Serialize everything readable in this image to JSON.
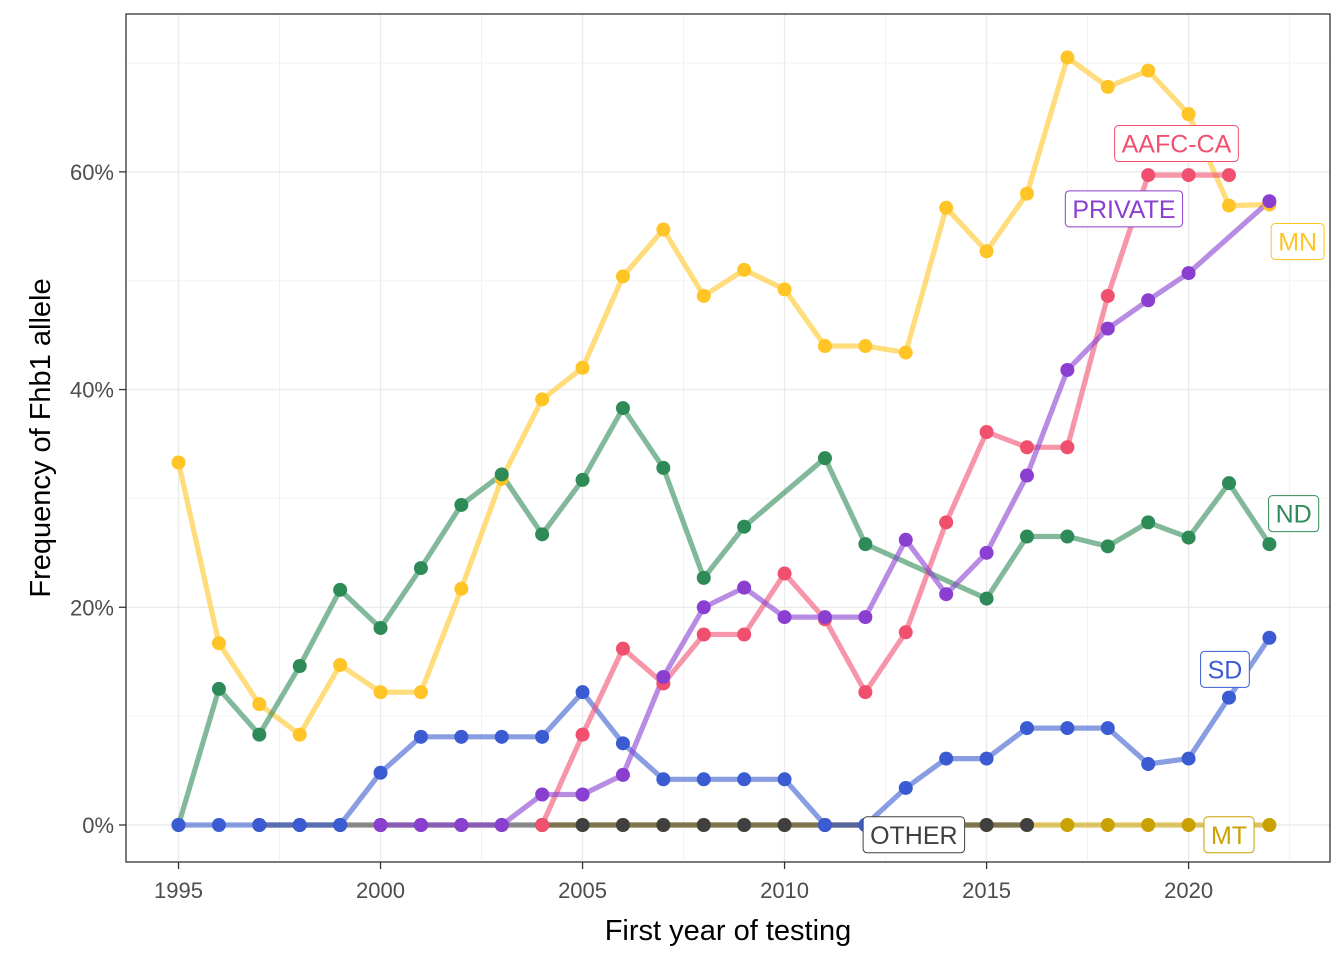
{
  "chart_data": {
    "type": "line",
    "xlabel": "First year of testing",
    "ylabel": "Frequency of Fhb1 allele",
    "xlim": [
      1993.7,
      2023.5
    ],
    "ylim": [
      -3.4,
      74.5
    ],
    "x_ticks": [
      1995,
      2000,
      2005,
      2010,
      2015,
      2020
    ],
    "x_tick_labels": [
      "1995",
      "2000",
      "2005",
      "2010",
      "2015",
      "2020"
    ],
    "y_ticks": [
      0,
      20,
      40,
      60
    ],
    "y_tick_labels": [
      "0%",
      "20%",
      "40%",
      "60%"
    ],
    "grid": true,
    "legend": "none (direct labels)",
    "series": [
      {
        "name": "MT",
        "color": "#C9A100",
        "x": [
          2004,
          2005,
          2006,
          2007,
          2008,
          2009,
          2010,
          2011,
          2012,
          2013,
          2014,
          2015,
          2016,
          2017,
          2018,
          2019,
          2020,
          2021,
          2022
        ],
        "values": [
          0,
          0,
          0,
          0,
          0,
          0,
          0,
          0,
          0,
          0,
          0,
          0,
          0,
          0,
          0,
          0,
          0,
          0,
          0
        ]
      },
      {
        "name": "OTHER",
        "color": "#404040",
        "x": [
          1997,
          1998,
          1999,
          2000,
          2001,
          2002,
          2003,
          2004,
          2005,
          2006,
          2007,
          2008,
          2009,
          2010,
          2011,
          2012,
          2013,
          2014,
          2015,
          2016
        ],
        "values": [
          0,
          0,
          0,
          0,
          0,
          0,
          0,
          0,
          0,
          0,
          0,
          0,
          0,
          0,
          0,
          0,
          0,
          0,
          0,
          0
        ]
      },
      {
        "name": "MN",
        "color": "#FFC425",
        "x": [
          1995,
          1996,
          1997,
          1998,
          1999,
          2000,
          2001,
          2002,
          2003,
          2004,
          2005,
          2006,
          2007,
          2008,
          2009,
          2010,
          2011,
          2012,
          2013,
          2014,
          2015,
          2016,
          2017,
          2018,
          2019,
          2020,
          2021,
          2022
        ],
        "values": [
          33.3,
          16.7,
          11.1,
          8.3,
          14.7,
          12.2,
          12.2,
          21.7,
          31.8,
          39.1,
          42.0,
          50.4,
          54.7,
          48.6,
          51.0,
          49.2,
          44.0,
          44.0,
          43.4,
          56.7,
          52.7,
          58.0,
          70.5,
          67.8,
          69.3,
          65.3,
          56.9,
          57.0
        ]
      },
      {
        "name": "ND",
        "color": "#2E8B57",
        "x": [
          1995,
          1996,
          1997,
          1998,
          1999,
          2000,
          2001,
          2002,
          2003,
          2004,
          2005,
          2006,
          2007,
          2008,
          2009,
          2011,
          2012,
          2015,
          2016,
          2017,
          2018,
          2019,
          2020,
          2021,
          2022
        ],
        "values": [
          0,
          12.5,
          8.3,
          14.6,
          21.6,
          18.1,
          23.6,
          29.4,
          32.2,
          26.7,
          31.7,
          38.3,
          32.8,
          22.7,
          27.4,
          33.7,
          25.8,
          20.8,
          26.5,
          26.5,
          25.6,
          27.8,
          26.4,
          31.4,
          25.8
        ]
      },
      {
        "name": "SD",
        "color": "#3A5BD1",
        "x": [
          1995,
          1996,
          1997,
          1998,
          1999,
          2000,
          2001,
          2002,
          2003,
          2004,
          2005,
          2006,
          2007,
          2008,
          2009,
          2010,
          2011,
          2012,
          2013,
          2014,
          2015,
          2016,
          2017,
          2018,
          2019,
          2020,
          2021,
          2022
        ],
        "values": [
          0,
          0,
          0,
          0,
          0,
          4.8,
          8.1,
          8.1,
          8.1,
          8.1,
          12.2,
          7.5,
          4.2,
          4.2,
          4.2,
          4.2,
          0,
          0,
          3.4,
          6.1,
          6.1,
          8.9,
          8.9,
          8.9,
          5.6,
          6.1,
          11.7,
          17.2
        ]
      },
      {
        "name": "AAFC-CA",
        "color": "#F0506E",
        "x": [
          2004,
          2005,
          2006,
          2007,
          2008,
          2009,
          2010,
          2011,
          2012,
          2013,
          2014,
          2015,
          2016,
          2017,
          2018,
          2019,
          2020,
          2021
        ],
        "values": [
          0,
          8.3,
          16.2,
          13.0,
          17.5,
          17.5,
          23.1,
          18.9,
          12.2,
          17.7,
          27.8,
          36.1,
          34.7,
          34.7,
          48.6,
          59.7,
          59.7,
          59.7
        ]
      },
      {
        "name": "PRIVATE",
        "color": "#8A3FD1",
        "x": [
          2000,
          2001,
          2002,
          2003,
          2004,
          2005,
          2006,
          2007,
          2008,
          2009,
          2010,
          2011,
          2012,
          2013,
          2014,
          2015,
          2016,
          2017,
          2018,
          2019,
          2020,
          2022
        ],
        "values": [
          0,
          0,
          0,
          0,
          2.8,
          2.8,
          4.6,
          13.6,
          20.0,
          21.8,
          19.1,
          19.1,
          19.1,
          26.2,
          21.2,
          25.0,
          32.1,
          41.8,
          45.6,
          48.2,
          50.7,
          57.3
        ]
      }
    ],
    "annotations": [
      {
        "text": "AAFC-CA",
        "series": "AAFC-CA",
        "x": 2019.7,
        "y": 62.6
      },
      {
        "text": "PRIVATE",
        "series": "PRIVATE",
        "x": 2018.4,
        "y": 56.6
      },
      {
        "text": "MN",
        "series": "MN",
        "x": 2022.7,
        "y": 53.6
      },
      {
        "text": "ND",
        "series": "ND",
        "x": 2022.6,
        "y": 28.6
      },
      {
        "text": "SD",
        "series": "SD",
        "x": 2020.9,
        "y": 14.3
      },
      {
        "text": "OTHER",
        "series": "OTHER",
        "x": 2013.2,
        "y": -0.9
      },
      {
        "text": "MT",
        "series": "MT",
        "x": 2021.0,
        "y": -0.9
      }
    ]
  }
}
